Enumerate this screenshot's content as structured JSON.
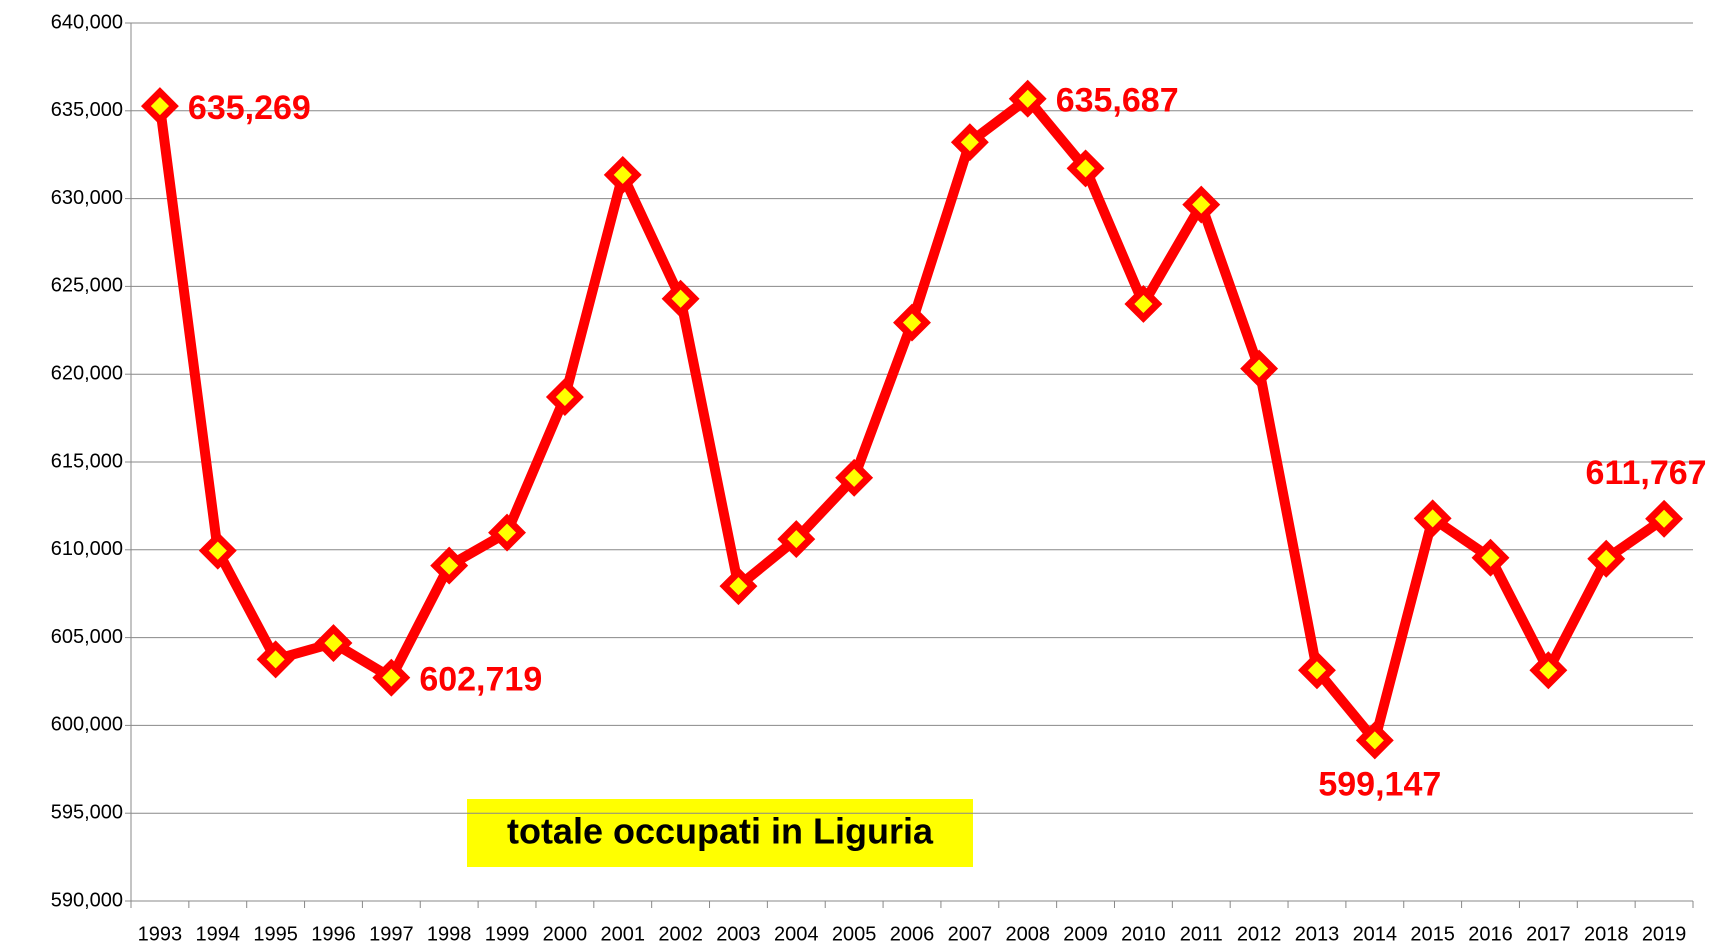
{
  "chart_data": {
    "type": "line",
    "annotation": "totale occupati in Liguria",
    "categories": [
      "1993",
      "1994",
      "1995",
      "1996",
      "1997",
      "1998",
      "1999",
      "2000",
      "2001",
      "2002",
      "2003",
      "2004",
      "2005",
      "2006",
      "2007",
      "2008",
      "2009",
      "2010",
      "2011",
      "2012",
      "2013",
      "2014",
      "2015",
      "2016",
      "2017",
      "2018",
      "2019"
    ],
    "series": [
      {
        "name": "totale occupati",
        "color": "#ff0000",
        "marker_fill": "#ffff00",
        "values": [
          635269,
          609950,
          603760,
          604690,
          602719,
          609100,
          610980,
          618700,
          631350,
          624300,
          607930,
          610610,
          614100,
          622940,
          633210,
          635687,
          631720,
          624000,
          629660,
          620320,
          603140,
          599147,
          611790,
          609550,
          603140,
          609490,
          611767
        ],
        "value_labels": [
          "635,269",
          null,
          null,
          null,
          "602,719",
          null,
          null,
          null,
          null,
          null,
          null,
          null,
          null,
          null,
          null,
          "635,687",
          null,
          null,
          null,
          null,
          null,
          "599,147",
          null,
          null,
          null,
          null,
          "611,767"
        ]
      }
    ],
    "ylim": [
      590000,
      640000
    ],
    "yticks": [
      {
        "value": 590000,
        "label": "590,000"
      },
      {
        "value": 595000,
        "label": "595,000"
      },
      {
        "value": 600000,
        "label": "600,000"
      },
      {
        "value": 605000,
        "label": "605,000"
      },
      {
        "value": 610000,
        "label": "610,000"
      },
      {
        "value": 615000,
        "label": "615,000"
      },
      {
        "value": 620000,
        "label": "620,000"
      },
      {
        "value": 625000,
        "label": "625,000"
      },
      {
        "value": 630000,
        "label": "630,000"
      },
      {
        "value": 635000,
        "label": "635,000"
      },
      {
        "value": 640000,
        "label": "640,000"
      }
    ],
    "grid": true
  }
}
